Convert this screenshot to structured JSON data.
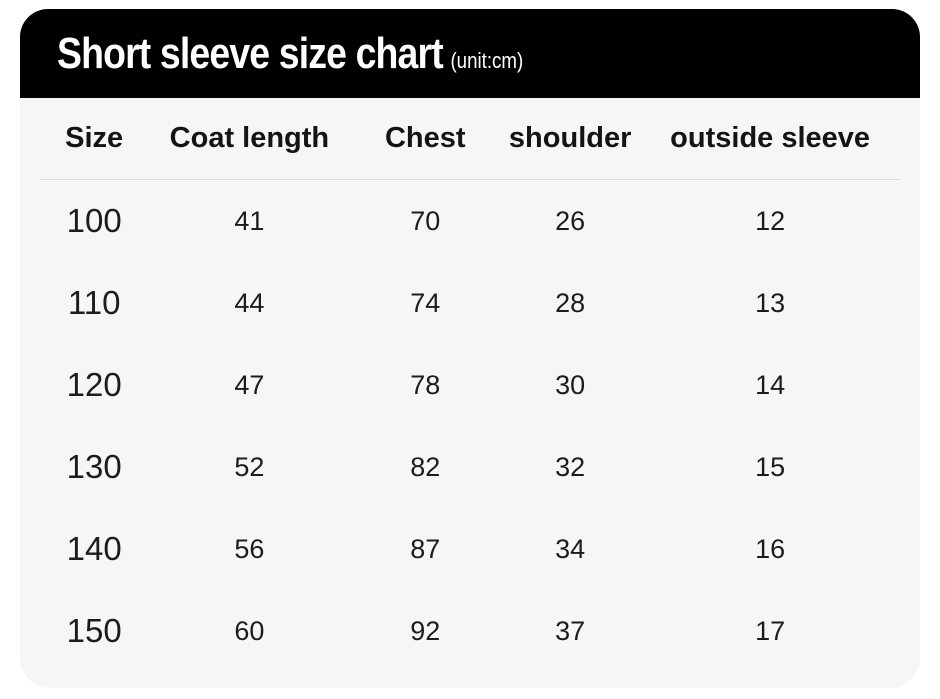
{
  "header": {
    "title": "Short sleeve size chart",
    "unit": "(unit:cm)"
  },
  "table": {
    "columns": [
      "Size",
      "Coat length",
      "Chest",
      "shoulder",
      "outside sleeve"
    ],
    "rows": [
      [
        "100",
        "41",
        "70",
        "26",
        "12"
      ],
      [
        "110",
        "44",
        "74",
        "28",
        "13"
      ],
      [
        "120",
        "47",
        "78",
        "30",
        "14"
      ],
      [
        "130",
        "52",
        "82",
        "32",
        "15"
      ],
      [
        "140",
        "56",
        "87",
        "34",
        "16"
      ],
      [
        "150",
        "60",
        "92",
        "37",
        "17"
      ]
    ]
  },
  "colors": {
    "title_bar_bg": "#000000",
    "title_text": "#ffffff",
    "card_bg": "#f6f6f6",
    "body_text": "#1c1c1c",
    "divider": "#dcdcdc"
  },
  "chart_data": {
    "type": "table",
    "title": "Short sleeve size chart",
    "unit": "cm",
    "columns": [
      "Size",
      "Coat length",
      "Chest",
      "shoulder",
      "outside sleeve"
    ],
    "rows": [
      [
        100,
        41,
        70,
        26,
        12
      ],
      [
        110,
        44,
        74,
        28,
        13
      ],
      [
        120,
        47,
        78,
        30,
        14
      ],
      [
        130,
        52,
        82,
        32,
        15
      ],
      [
        140,
        56,
        87,
        34,
        16
      ],
      [
        150,
        60,
        92,
        37,
        17
      ]
    ]
  }
}
